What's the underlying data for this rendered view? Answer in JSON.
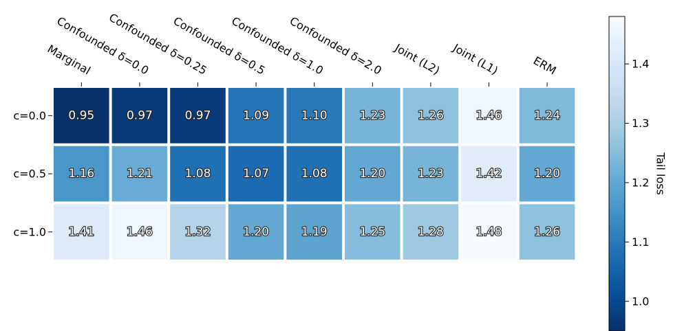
{
  "chart_data": {
    "type": "heatmap",
    "title": "",
    "x_categories": [
      "Marginal",
      "Confounded δ=0.0",
      "Confounded δ=0.25",
      "Confounded δ=0.5",
      "Confounded δ=1.0",
      "Confounded δ=2.0",
      "Joint (L2)",
      "Joint (L1)",
      "ERM"
    ],
    "y_categories": [
      "c=0.0",
      "c=0.5",
      "c=1.0"
    ],
    "values": [
      [
        0.95,
        0.97,
        0.97,
        1.09,
        1.1,
        1.23,
        1.26,
        1.46,
        1.24
      ],
      [
        1.16,
        1.21,
        1.08,
        1.07,
        1.08,
        1.2,
        1.23,
        1.42,
        1.2
      ],
      [
        1.41,
        1.46,
        1.32,
        1.2,
        1.19,
        1.25,
        1.28,
        1.48,
        1.26
      ]
    ],
    "cell_labels": [
      [
        "0.95",
        "0.97",
        "0.97",
        "1.09",
        "1.10",
        "1.23",
        "1.26",
        "1.46",
        "1.24"
      ],
      [
        "1.16",
        "1.21",
        "1.08",
        "1.07",
        "1.08",
        "1.20",
        "1.23",
        "1.42",
        "1.20"
      ],
      [
        "1.41",
        "1.46",
        "1.32",
        "1.20",
        "1.19",
        "1.25",
        "1.28",
        "1.48",
        "1.26"
      ]
    ],
    "colormap": "Blues_r",
    "vmin": 0.95,
    "vmax": 1.48,
    "colorbar": {
      "label": "Tail loss",
      "ticks": [
        1.0,
        1.1,
        1.2,
        1.3,
        1.4
      ],
      "tick_labels": [
        "1.0",
        "1.1",
        "1.2",
        "1.3",
        "1.4"
      ]
    },
    "x_tick_position": "top",
    "grid": false
  }
}
